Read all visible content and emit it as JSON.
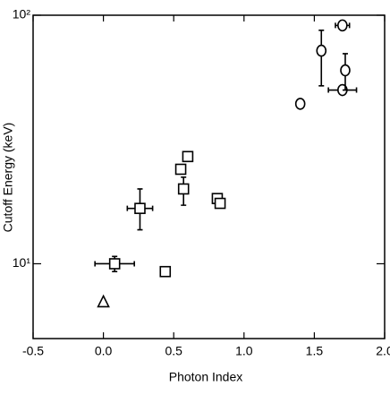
{
  "chart_data": {
    "type": "scatter",
    "x_label": "Photon Index",
    "y_label": "Cutoff Energy (keV)",
    "xlim": [
      -0.5,
      2.0
    ],
    "xticks": [
      -0.5,
      {
        "value": 0,
        "label": "0.0"
      },
      0.5,
      {
        "value": 1,
        "label": "1.0"
      },
      1.5,
      {
        "value": 2,
        "label": "2.0"
      }
    ],
    "ylim": [
      5,
      100
    ],
    "yscale": "log",
    "yticks": [
      {
        "value": 10,
        "label": "10¹"
      },
      {
        "value": 100,
        "label": "10²"
      }
    ],
    "series": [
      {
        "marker": "circle",
        "color": "#000000",
        "x": [
          1.7,
          1.72,
          1.7,
          1.55,
          1.4
        ],
        "y": [
          50,
          60,
          91,
          72,
          44
        ],
        "xerr": [
          0.1,
          null,
          0.05,
          null,
          null
        ],
        "yerr": [
          null,
          [
            10,
            10
          ],
          null,
          [
            20,
            15
          ],
          null
        ]
      },
      {
        "marker": "square",
        "color": "#000000",
        "x": [
          0.08,
          0.44,
          0.26,
          0.55,
          0.6,
          0.57,
          0.81,
          0.83
        ],
        "y": [
          10,
          9.3,
          16.7,
          24,
          27,
          20,
          18.3,
          17.5
        ],
        "xerr": [
          0.14,
          null,
          0.09,
          null,
          null,
          null,
          null,
          null
        ],
        "yerr": [
          [
            0.7,
            0.7
          ],
          null,
          [
            3,
            3.3
          ],
          null,
          null,
          [
            2.8,
            2.3
          ],
          null,
          null
        ]
      },
      {
        "marker": "triangle",
        "color": "#000000",
        "x": [
          0.0
        ],
        "y": [
          7.0
        ],
        "xerr": [
          null
        ],
        "yerr": [
          null
        ]
      }
    ]
  }
}
